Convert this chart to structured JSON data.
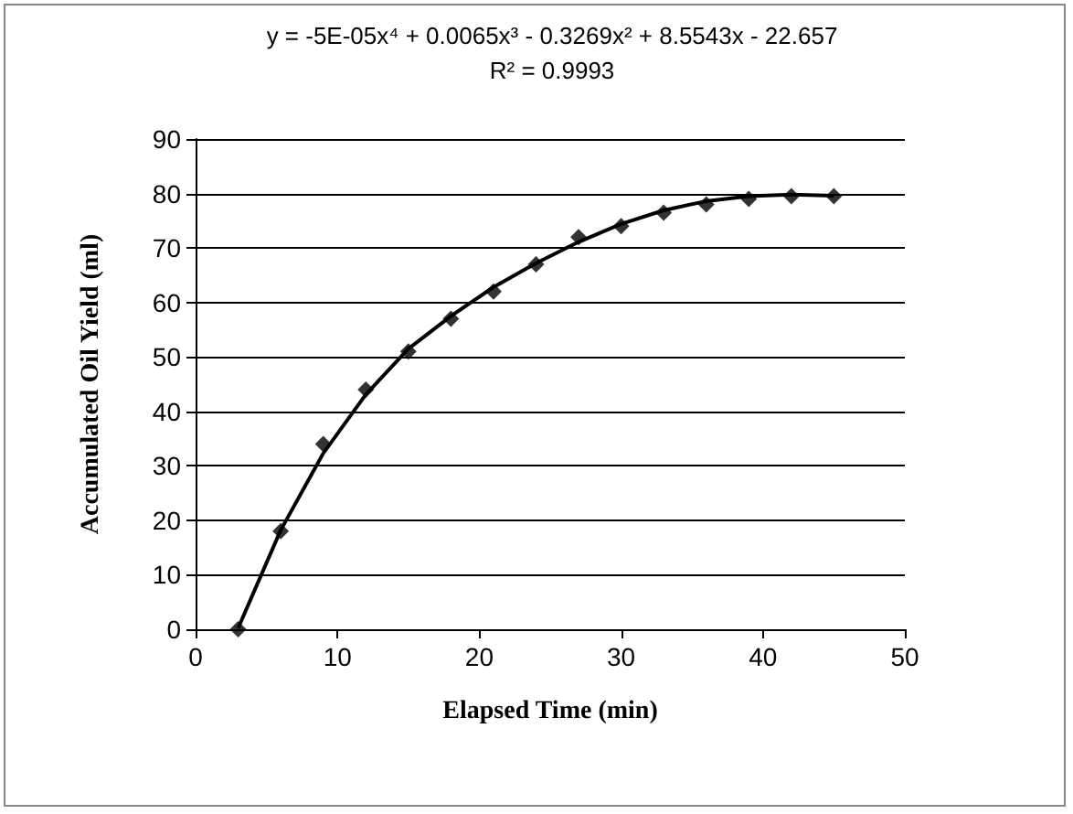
{
  "chart_data": {
    "type": "line",
    "xlabel": "Elapsed Time (min)",
    "ylabel": "Accumulated Oil Yield (ml)",
    "annotations": [
      "y = -5E-05x⁴ + 0.0065x³ - 0.3269x² + 8.5543x - 22.657",
      "R² = 0.9993"
    ],
    "x": [
      3,
      6,
      9,
      12,
      15,
      18,
      21,
      24,
      27,
      30,
      33,
      36,
      39,
      42,
      45
    ],
    "series": [
      {
        "type": "scatter",
        "color": "#000000",
        "marker": "diamond",
        "values": [
          0,
          18,
          34,
          44,
          51,
          57,
          62,
          67,
          72,
          74,
          76.5,
          78,
          79,
          79.5,
          79.5
        ]
      },
      {
        "color": "#000000",
        "marker": "none",
        "x": [
          3,
          6,
          9,
          12,
          15,
          18,
          21,
          24,
          27,
          30,
          33,
          36,
          39,
          42,
          45
        ],
        "values": [
          0.2,
          18.2,
          32.3,
          43.1,
          51.5,
          57.5,
          62.8,
          67.2,
          71.1,
          74.4,
          76.9,
          78.6,
          79.5,
          79.8,
          79.6
        ]
      }
    ],
    "xlim": [
      0,
      50
    ],
    "xticks": [
      0,
      10,
      20,
      30,
      40,
      50
    ],
    "ylim": [
      0,
      90
    ],
    "yticks": [
      0,
      10,
      20,
      30,
      40,
      50,
      60,
      70,
      80,
      90
    ],
    "grid": "y"
  }
}
